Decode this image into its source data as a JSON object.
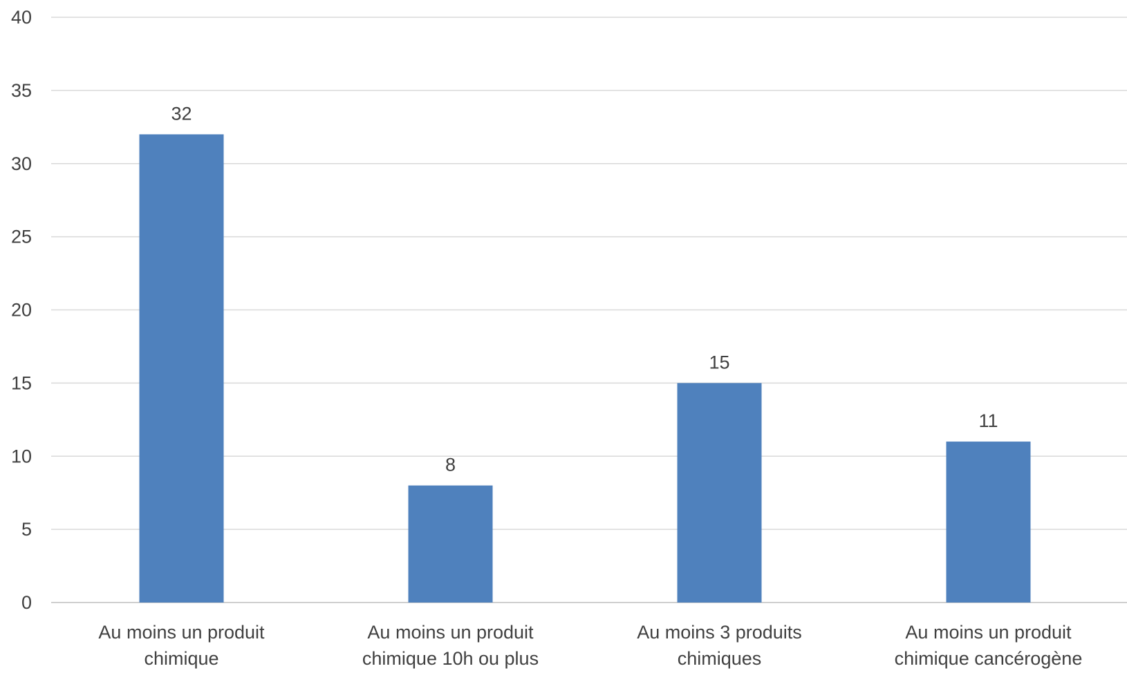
{
  "chart_data": {
    "type": "bar",
    "title": "",
    "xlabel": "",
    "ylabel": "",
    "categories": [
      [
        "Au moins un produit",
        "chimique"
      ],
      [
        "Au moins un produit",
        "chimique 10h ou plus"
      ],
      [
        "Au moins 3 produits",
        "chimiques"
      ],
      [
        "Au moins un produit",
        "chimique cancérogène"
      ]
    ],
    "values": [
      32,
      8,
      15,
      11
    ],
    "data_labels": [
      "32",
      "8",
      "15",
      "11"
    ],
    "ylim": [
      0,
      40
    ],
    "y_ticks": [
      0,
      5,
      10,
      15,
      20,
      25,
      30,
      35,
      40
    ],
    "y_tick_labels": [
      "0",
      "5",
      "10",
      "15",
      "20",
      "25",
      "30",
      "35",
      "40"
    ],
    "grid": true,
    "legend": "none",
    "colors": {
      "bar": "#4f81bd",
      "grid": "#d9d9d9",
      "text": "#404040"
    }
  }
}
